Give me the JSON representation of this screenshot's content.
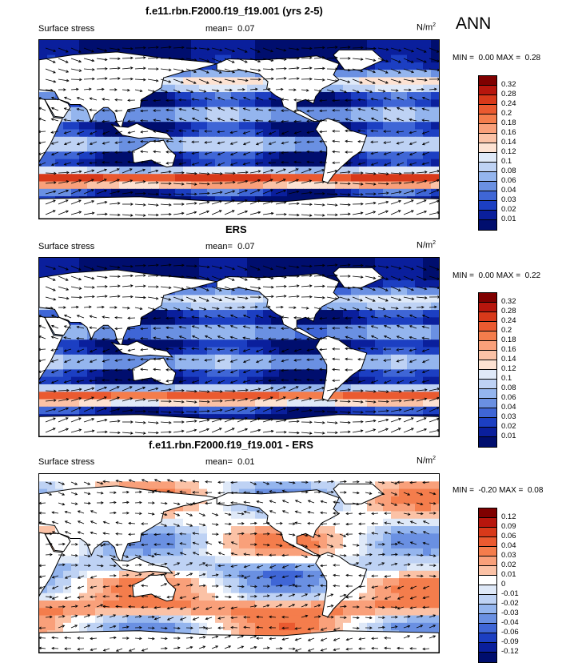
{
  "season": "ANN",
  "panels": [
    {
      "title": "f.e11.rbn.F2000.f19_f19.001 (yrs 2-5)",
      "variable": "Surface stress",
      "mean_label": "mean=",
      "mean_value": "0.07",
      "units_base": "N/m",
      "units_exp": "2",
      "min_label": "MIN =",
      "min_value": "0.00",
      "max_label": "MAX =",
      "max_value": "0.28",
      "palette": "abs",
      "colorbar_labels": [
        "0.32",
        "0.28",
        "0.24",
        "0.2",
        "0.18",
        "0.16",
        "0.14",
        "0.12",
        "0.1",
        "0.08",
        "0.06",
        "0.04",
        "0.03",
        "0.02",
        "0.01"
      ]
    },
    {
      "title": "ERS",
      "variable": "Surface stress",
      "mean_label": "mean=",
      "mean_value": "0.07",
      "units_base": "N/m",
      "units_exp": "2",
      "min_label": "MIN =",
      "min_value": "0.00",
      "max_label": "MAX =",
      "max_value": "0.22",
      "palette": "abs",
      "colorbar_labels": [
        "0.32",
        "0.28",
        "0.24",
        "0.2",
        "0.18",
        "0.16",
        "0.14",
        "0.12",
        "0.1",
        "0.08",
        "0.06",
        "0.04",
        "0.03",
        "0.02",
        "0.01"
      ]
    },
    {
      "title": "f.e11.rbn.F2000.f19_f19.001 - ERS",
      "variable": "Surface stress",
      "mean_label": "mean=",
      "mean_value": "0.01",
      "units_base": "N/m",
      "units_exp": "2",
      "min_label": "MIN =",
      "min_value": "-0.20",
      "max_label": "MAX =",
      "max_value": "0.08",
      "palette": "diff",
      "colorbar_labels": [
        "0.12",
        "0.09",
        "0.06",
        "0.04",
        "0.03",
        "0.02",
        "0.01",
        "0",
        "-0.01",
        "-0.02",
        "-0.03",
        "-0.04",
        "-0.06",
        "-0.09",
        "-0.12"
      ]
    }
  ],
  "palettes": {
    "abs": [
      "#7f0000",
      "#b7160d",
      "#d8391a",
      "#ea5a30",
      "#f47d4c",
      "#f9a07a",
      "#fbc2a6",
      "#fde2d2",
      "#dfe9f8",
      "#bed2f4",
      "#94b5ee",
      "#6a90e2",
      "#3f66d6",
      "#1c3fc2",
      "#0a1f9c",
      "#000e6e"
    ],
    "diff": [
      "#7f0000",
      "#b7160d",
      "#d8391a",
      "#ea5a30",
      "#f47d4c",
      "#f9a07a",
      "#fbc2a6",
      "#ffffff",
      "#dfe9f8",
      "#bed2f4",
      "#94b5ee",
      "#6a90e2",
      "#3f66d6",
      "#1c3fc2",
      "#0a1f9c",
      "#000e6e"
    ]
  }
}
